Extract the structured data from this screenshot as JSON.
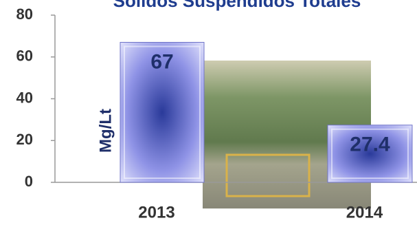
{
  "chart_data": {
    "type": "bar",
    "title": "Solidos Suspendidos Totales",
    "y_label": "Mg/Lt",
    "categories": [
      "2013",
      "2014"
    ],
    "values": [
      67,
      27.4
    ],
    "color": "#8f93e6",
    "ylim": [
      0,
      80
    ],
    "yticks": [
      0,
      20,
      40,
      60,
      80
    ],
    "grid": false
  }
}
